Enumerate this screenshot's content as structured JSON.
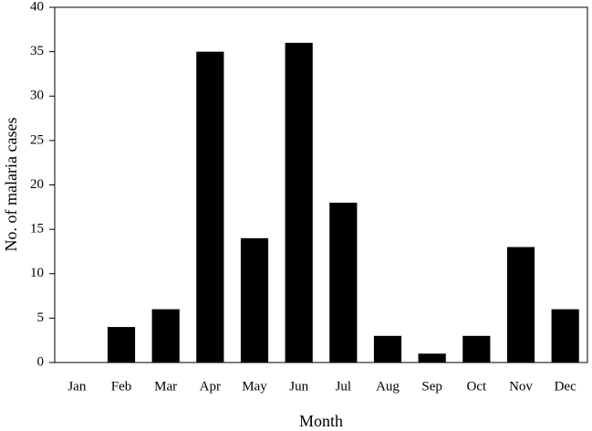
{
  "chart_data": {
    "type": "bar",
    "x_label": "Month",
    "y_label": "No. of malaria cases",
    "categories": [
      "Jan",
      "Feb",
      "Mar",
      "Apr",
      "May",
      "Jun",
      "Jul",
      "Aug",
      "Sep",
      "Oct",
      "Nov",
      "Dec"
    ],
    "values": [
      0,
      4,
      6,
      35,
      14,
      36,
      18,
      3,
      1,
      3,
      13,
      6
    ],
    "color": "#000000",
    "ylim": [
      0,
      40
    ],
    "yticks": [
      0,
      5,
      10,
      15,
      20,
      25,
      30,
      35,
      40
    ],
    "grid": false
  }
}
